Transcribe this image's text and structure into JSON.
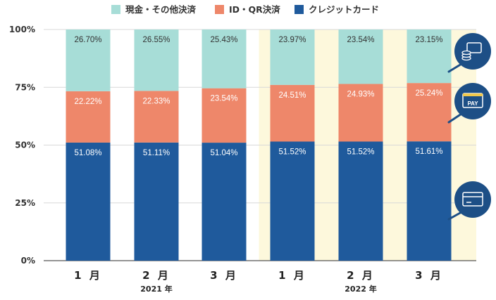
{
  "colors": {
    "cash": "#a7ddd7",
    "id_qr": "#ee876a",
    "credit": "#1f5a9c",
    "highlight_bg": "#fdf8dc",
    "icon_bg": "#1d4f86",
    "grid": "#d8d8d8"
  },
  "icons": [
    "coins-card-icon",
    "pay-card-icon",
    "credit-card-icon"
  ],
  "chart_data": {
    "type": "bar",
    "stacked": true,
    "categories": [
      "1 月",
      "2 月",
      "3 月",
      "1 月",
      "2 月",
      "3 月"
    ],
    "groups": [
      {
        "label": "2021 年",
        "category_indices": [
          0,
          1,
          2
        ]
      },
      {
        "label": "2022 年",
        "category_indices": [
          3,
          4,
          5
        ],
        "highlighted": true
      }
    ],
    "series": [
      {
        "name": "クレジットカード",
        "color": "#1f5a9c",
        "values": [
          51.08,
          51.11,
          51.04,
          51.52,
          51.52,
          51.61
        ],
        "labels": [
          "51.08%",
          "51.11%",
          "51.04%",
          "51.52%",
          "51.52%",
          "51.61%"
        ]
      },
      {
        "name": "ID・QR決済",
        "color": "#ee876a",
        "values": [
          22.22,
          22.33,
          23.54,
          24.51,
          24.93,
          25.24
        ],
        "labels": [
          "22.22%",
          "22.33%",
          "23.54%",
          "24.51%",
          "24.93%",
          "25.24%"
        ]
      },
      {
        "name": "現金・その他決済",
        "color": "#a7ddd7",
        "values": [
          26.7,
          26.55,
          25.43,
          23.97,
          23.54,
          23.15
        ],
        "labels": [
          "26.70%",
          "26.55%",
          "25.43%",
          "23.97%",
          "23.54%",
          "23.15%"
        ]
      }
    ],
    "legend_order": [
      "現金・その他決済",
      "ID・QR決済",
      "クレジットカード"
    ],
    "legend": [
      "現金・その他決済",
      "ID・QR決済",
      "クレジットカード"
    ],
    "yticks": [
      "0%",
      "25%",
      "50%",
      "75%",
      "100%"
    ],
    "ytick_values": [
      0,
      25,
      50,
      75,
      100
    ],
    "ylim": [
      0,
      100
    ],
    "legend_position": "top-center",
    "grid": true
  }
}
